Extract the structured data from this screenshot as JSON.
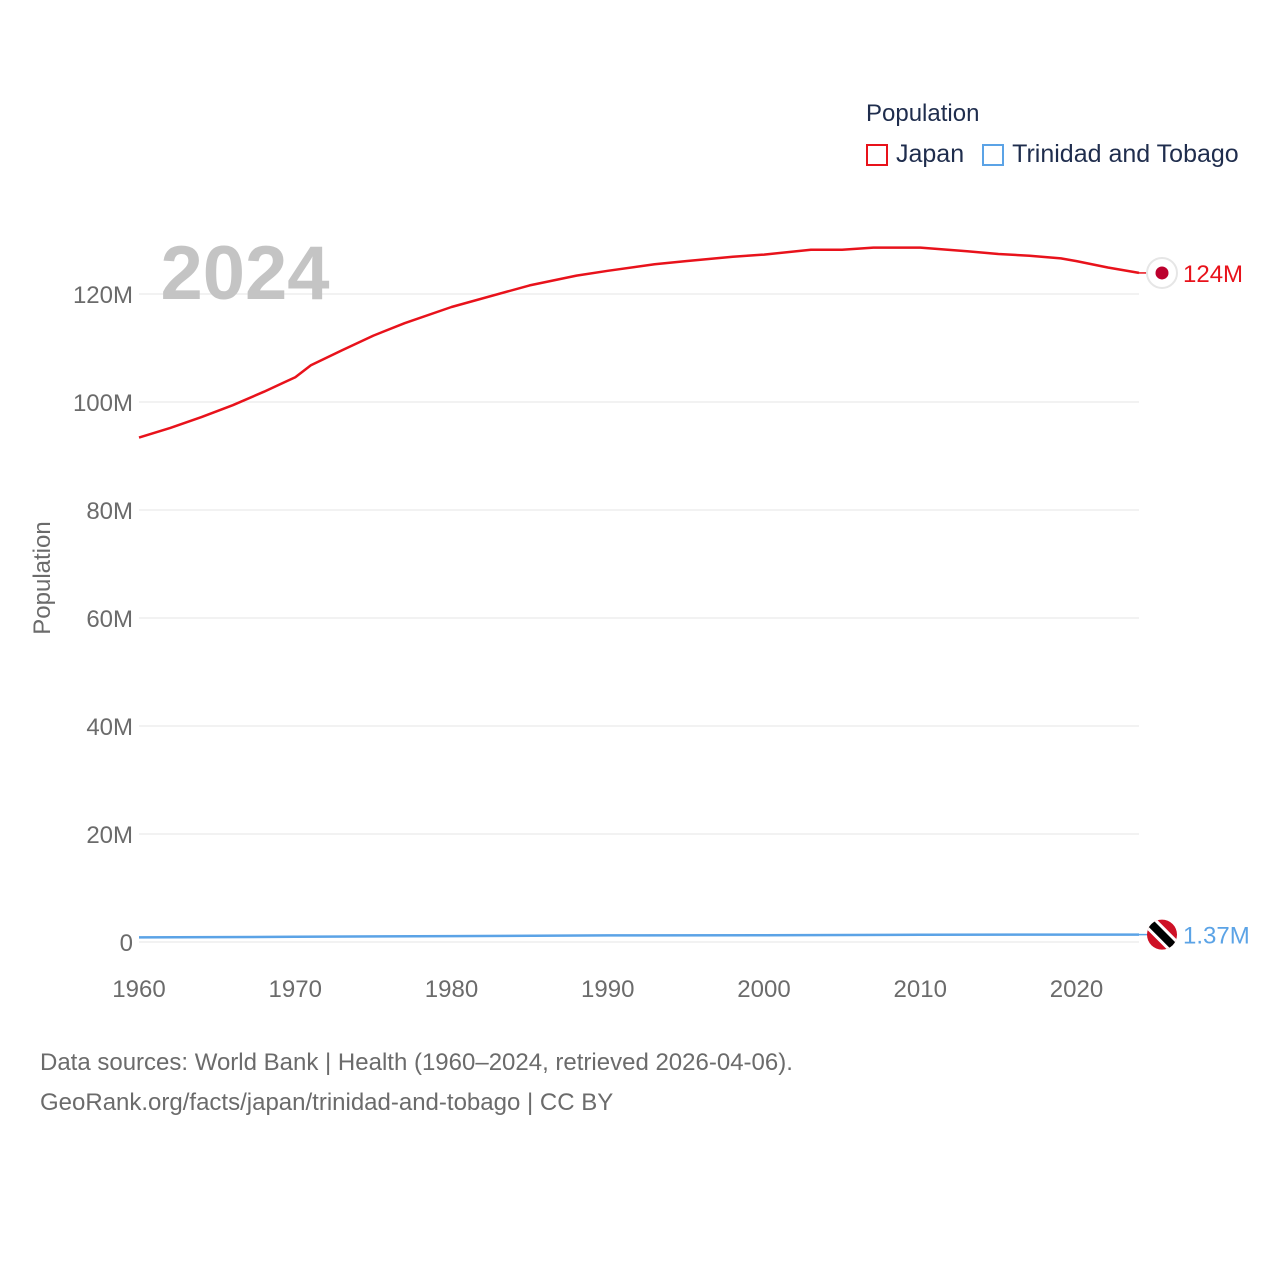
{
  "chart_data": {
    "type": "line",
    "year_label": "2024",
    "ylabel": "Population",
    "xlim": [
      1960,
      2024
    ],
    "ylim": [
      0,
      130000000
    ],
    "y_ticks": [
      {
        "value": 0,
        "label": "0"
      },
      {
        "value": 20000000,
        "label": "20M"
      },
      {
        "value": 40000000,
        "label": "40M"
      },
      {
        "value": 60000000,
        "label": "60M"
      },
      {
        "value": 80000000,
        "label": "80M"
      },
      {
        "value": 100000000,
        "label": "100M"
      },
      {
        "value": 120000000,
        "label": "120M"
      }
    ],
    "x_ticks": [
      {
        "value": 1960,
        "label": "1960"
      },
      {
        "value": 1970,
        "label": "1970"
      },
      {
        "value": 1980,
        "label": "1980"
      },
      {
        "value": 1990,
        "label": "1990"
      },
      {
        "value": 2000,
        "label": "2000"
      },
      {
        "value": 2010,
        "label": "2010"
      },
      {
        "value": 2020,
        "label": "2020"
      }
    ],
    "series": [
      {
        "name": "Japan",
        "color": "#e8121b",
        "end_label": "124M",
        "icon": "japan-flag-icon",
        "x": [
          1960,
          1962,
          1964,
          1966,
          1968,
          1970,
          1971,
          1973,
          1975,
          1977,
          1980,
          1985,
          1988,
          1990,
          1993,
          1995,
          1998,
          2000,
          2003,
          2005,
          2007,
          2010,
          2013,
          2015,
          2017,
          2019,
          2020,
          2022,
          2024
        ],
        "y": [
          93400000,
          95200000,
          97200000,
          99400000,
          101900000,
          104600000,
          106800000,
          109600000,
          112300000,
          114600000,
          117600000,
          121600000,
          123400000,
          124300000,
          125500000,
          126100000,
          126900000,
          127300000,
          128200000,
          128200000,
          128600000,
          128600000,
          127900000,
          127400000,
          127100000,
          126600000,
          126100000,
          124900000,
          123900000
        ]
      },
      {
        "name": "Trinidad and Tobago",
        "color": "#5ba3e6",
        "end_label": "1.37M",
        "icon": "trinidad-and-tobago-flag-icon",
        "x": [
          1960,
          1970,
          1980,
          1990,
          2000,
          2010,
          2020,
          2024
        ],
        "y": [
          848000,
          955000,
          1085000,
          1222000,
          1268000,
          1328000,
          1367000,
          1368000
        ]
      }
    ]
  },
  "legend": {
    "title": "Population",
    "items": [
      {
        "label": "Japan",
        "color": "#e8121b"
      },
      {
        "label": "Trinidad and Tobago",
        "color": "#5ba3e6"
      }
    ]
  },
  "sources": {
    "line1": "Data sources: World Bank | Health (1960–2024, retrieved 2026-04-06).",
    "line2": "GeoRank.org/facts/japan/trinidad-and-tobago | CC BY"
  }
}
